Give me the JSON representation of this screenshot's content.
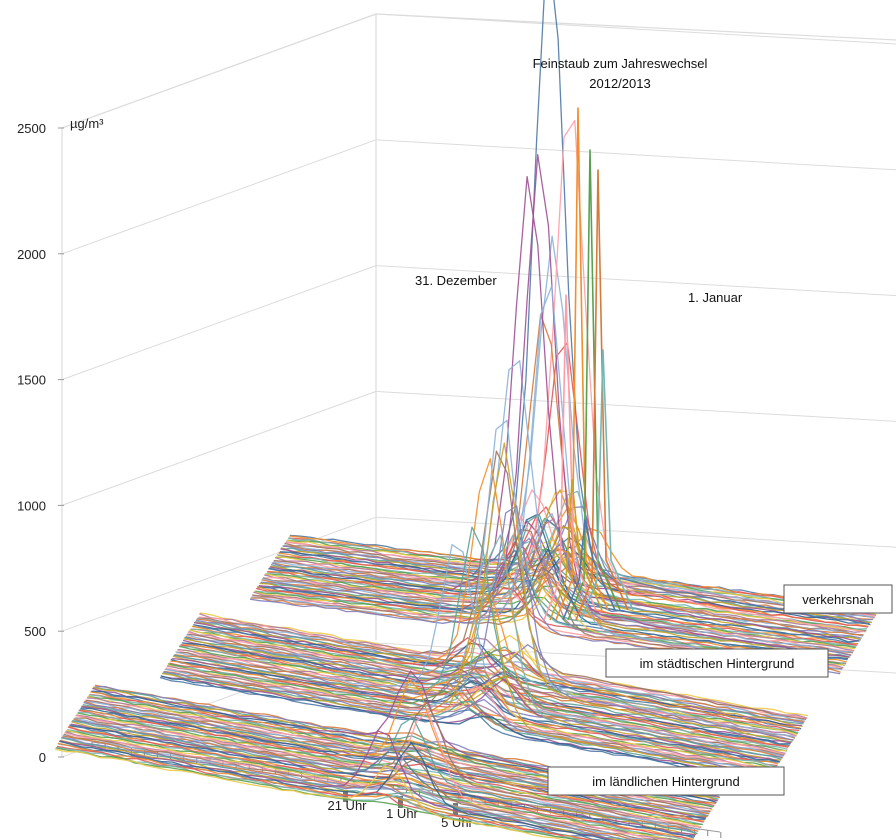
{
  "chart_data": {
    "type": "line",
    "variant": "3d-ridgeline",
    "title": "Feinstaub zum Jahreswechsel",
    "subtitle": "2012/2013",
    "xlabel": "",
    "ylabel": "",
    "y_unit": "µg/m³",
    "ylim": [
      0,
      2500
    ],
    "y_ticks": [
      "0",
      "500",
      "1000",
      "1500",
      "2000",
      "2500"
    ],
    "x_ticks": [
      "21 Uhr",
      "1 Uhr",
      "5 Uhr"
    ],
    "annotations": [
      "31. Dezember",
      "1. Januar"
    ],
    "grid": true,
    "groups": [
      {
        "name": "verkehrsnah",
        "peak_max": 2500,
        "line_count": 60
      },
      {
        "name": "im städtischen Hintergrund",
        "peak_max": 1000,
        "line_count": 60
      },
      {
        "name": "im ländlichen Hintergrund",
        "peak_max": 300,
        "line_count": 60
      }
    ]
  },
  "palette": [
    "#4e79a7",
    "#f28e2b",
    "#e15759",
    "#76b7b2",
    "#59a14f",
    "#edc948",
    "#b07aa1",
    "#ff9da7",
    "#9c755f",
    "#8cb3d9",
    "#d67a3a",
    "#7f7fbf",
    "#5aa39a",
    "#c9a227",
    "#a05195",
    "#2f6690"
  ]
}
